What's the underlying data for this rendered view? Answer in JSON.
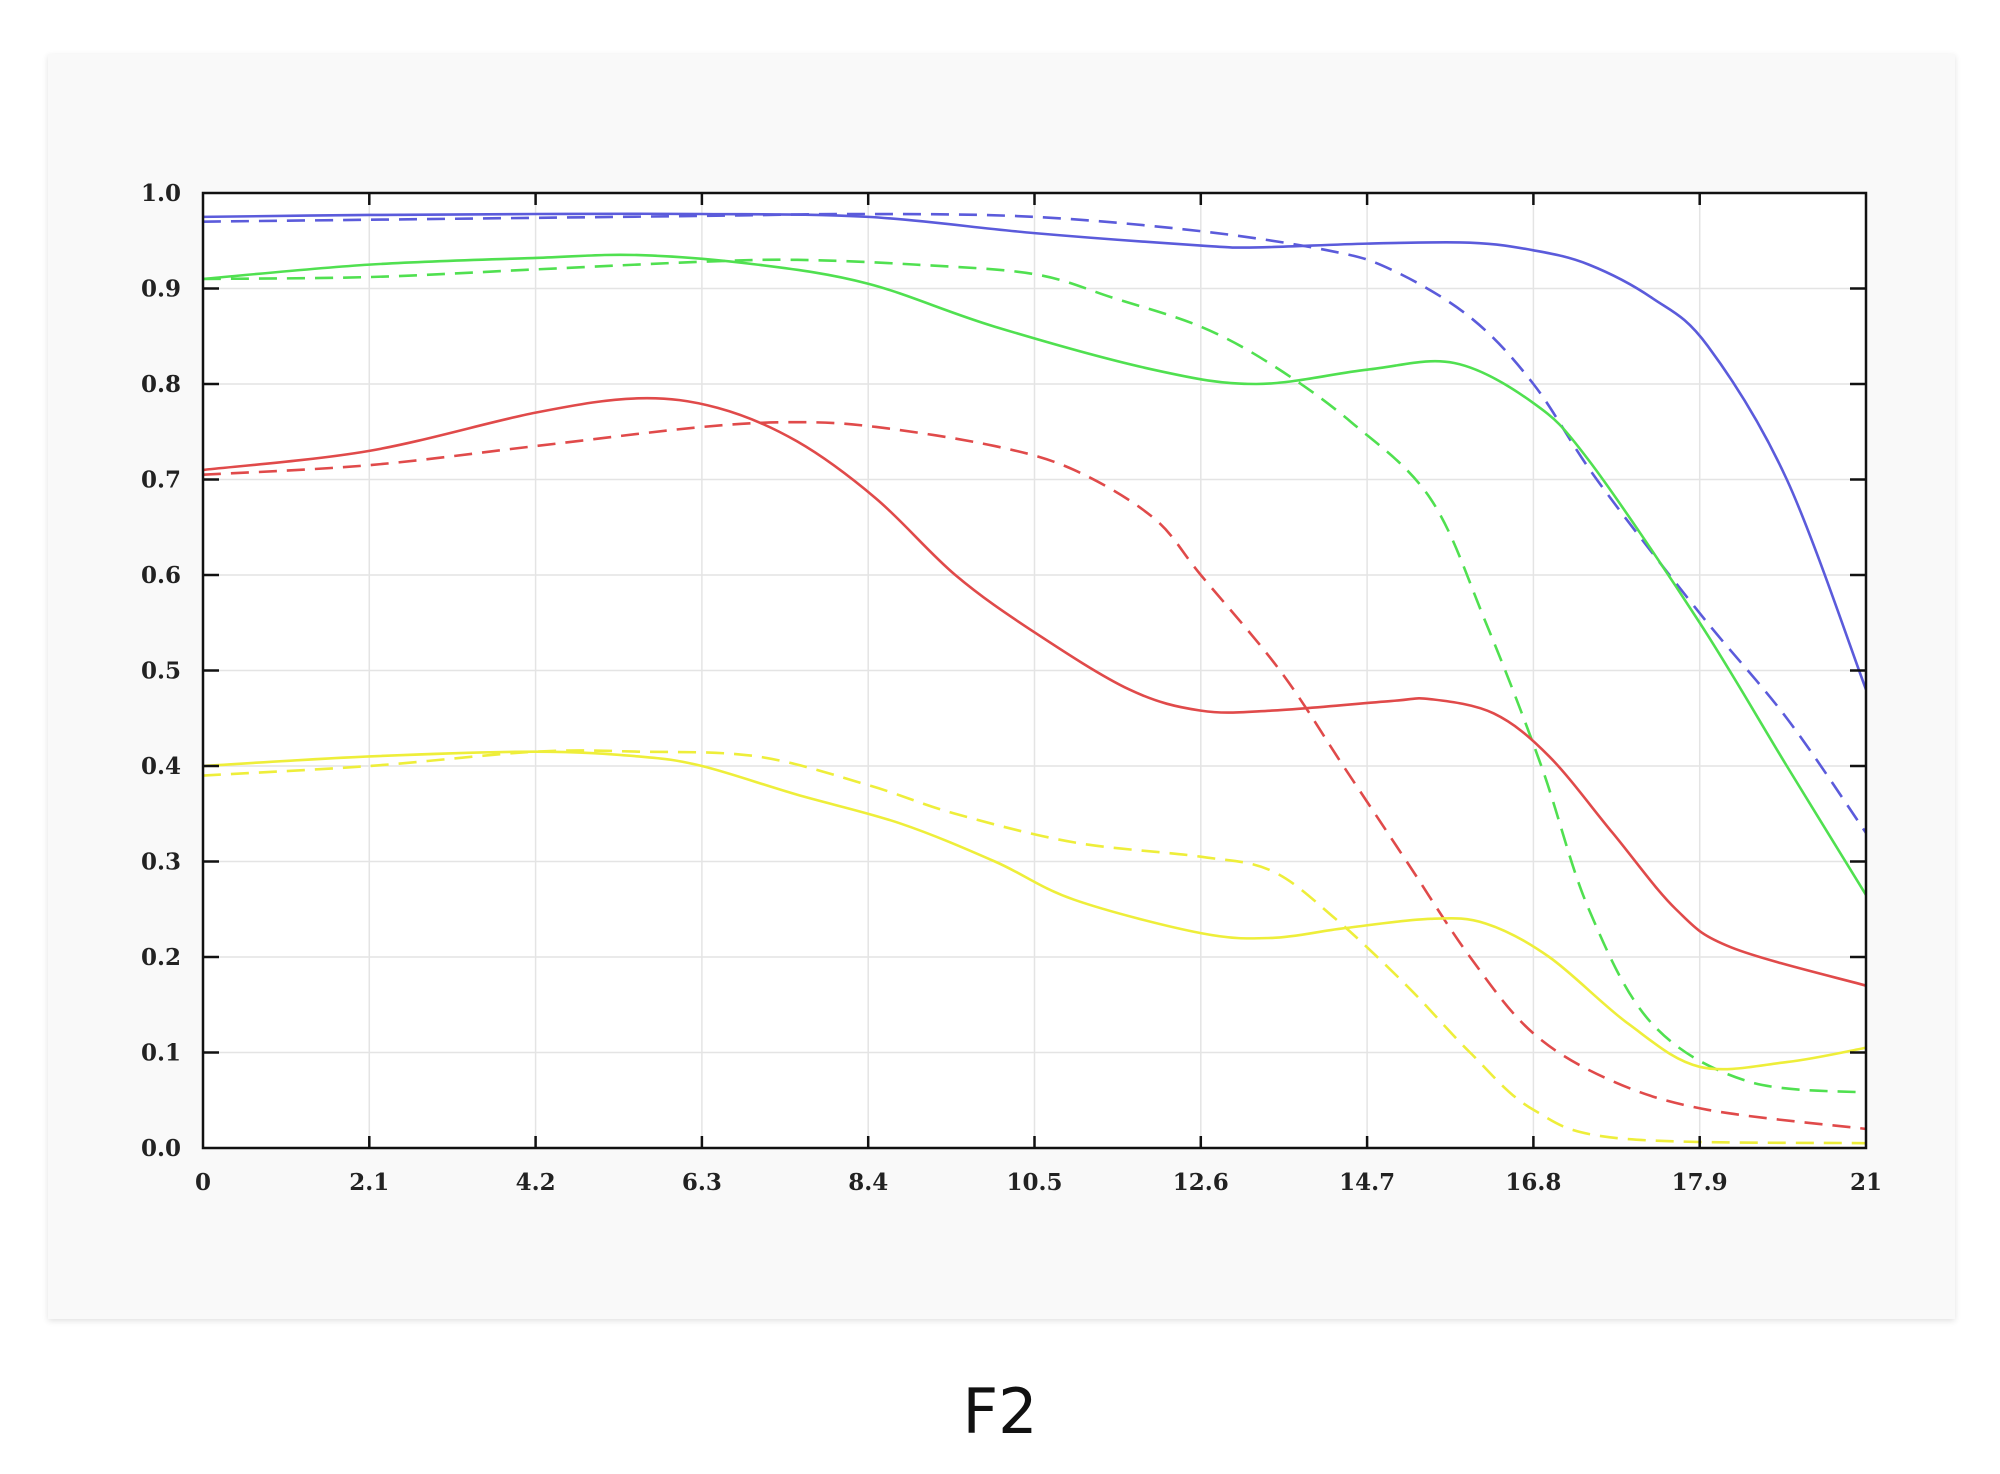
{
  "caption": "F2",
  "chart_data": {
    "type": "line",
    "title": "",
    "xlabel": "",
    "ylabel": "",
    "xlim": [
      0,
      21
    ],
    "ylim": [
      0,
      1.0
    ],
    "grid": true,
    "legend": "none",
    "x_tick_labels": [
      "0",
      "2.1",
      "4.2",
      "6.3",
      "8.4",
      "10.5",
      "12.6",
      "14.7",
      "16.8",
      "17.9",
      "21"
    ],
    "y_tick_labels": [
      "0.0",
      "0.1",
      "0.2",
      "0.3",
      "0.4",
      "0.5",
      "0.6",
      "0.7",
      "0.8",
      "0.9",
      "1.0"
    ],
    "series": [
      {
        "color": "#5b5bdb",
        "style": "solid",
        "x": [
          0,
          2.1,
          4.2,
          6.3,
          8.4,
          10.5,
          12.6,
          13.3,
          14.7,
          16,
          16.8,
          17.5,
          18.3,
          19,
          20,
          21
        ],
        "y": [
          0.975,
          0.977,
          0.978,
          0.978,
          0.975,
          0.958,
          0.945,
          0.943,
          0.947,
          0.948,
          0.94,
          0.925,
          0.89,
          0.84,
          0.7,
          0.48
        ]
      },
      {
        "color": "#5b5bdb",
        "style": "dashed",
        "x": [
          0,
          2.1,
          4.2,
          6.3,
          8.4,
          10.5,
          12.6,
          14.2,
          15,
          16,
          16.8,
          17.6,
          18.9,
          20,
          21
        ],
        "y": [
          0.97,
          0.972,
          0.974,
          0.976,
          0.978,
          0.975,
          0.96,
          0.94,
          0.92,
          0.87,
          0.8,
          0.7,
          0.56,
          0.45,
          0.33
        ]
      },
      {
        "color": "#50e050",
        "style": "solid",
        "x": [
          0,
          2.1,
          4.2,
          5.5,
          7,
          8.4,
          10,
          12,
          13.3,
          14.7,
          15.8,
          16.8,
          17.5,
          18.9,
          20,
          21
        ],
        "y": [
          0.91,
          0.925,
          0.932,
          0.935,
          0.925,
          0.905,
          0.86,
          0.815,
          0.8,
          0.815,
          0.822,
          0.78,
          0.72,
          0.55,
          0.4,
          0.265
        ]
      },
      {
        "color": "#50e050",
        "style": "dashed",
        "x": [
          0,
          2.1,
          4.2,
          6.3,
          7.5,
          9,
          10.5,
          11.5,
          12.6,
          13.5,
          14.5,
          15.5,
          16.2,
          16.9,
          17.5,
          18.3,
          19.5,
          21
        ],
        "y": [
          0.91,
          0.912,
          0.92,
          0.928,
          0.93,
          0.925,
          0.915,
          0.89,
          0.86,
          0.82,
          0.76,
          0.68,
          0.55,
          0.4,
          0.25,
          0.13,
          0.07,
          0.058
        ]
      },
      {
        "color": "#e04a4a",
        "style": "solid",
        "x": [
          0,
          2.1,
          4.2,
          5.5,
          6.5,
          7.5,
          8.5,
          9.5,
          10.5,
          11.7,
          12.6,
          13.5,
          15,
          15.5,
          16.3,
          17,
          17.8,
          18.6,
          19.3,
          21
        ],
        "y": [
          0.71,
          0.73,
          0.77,
          0.785,
          0.775,
          0.74,
          0.68,
          0.6,
          0.54,
          0.48,
          0.458,
          0.458,
          0.468,
          0.47,
          0.455,
          0.41,
          0.33,
          0.25,
          0.21,
          0.17
        ]
      },
      {
        "color": "#e04a4a",
        "style": "dashed",
        "x": [
          0,
          2.1,
          4.2,
          6.3,
          7.5,
          8.5,
          10,
          11,
          12,
          12.6,
          13.6,
          14.4,
          15.2,
          16,
          16.8,
          17.8,
          19,
          21
        ],
        "y": [
          0.705,
          0.715,
          0.735,
          0.755,
          0.76,
          0.755,
          0.735,
          0.71,
          0.66,
          0.6,
          0.5,
          0.4,
          0.3,
          0.2,
          0.12,
          0.07,
          0.04,
          0.02
        ]
      },
      {
        "color": "#eeee3a",
        "style": "solid",
        "x": [
          0,
          2.1,
          4.2,
          5.5,
          6.3,
          7.5,
          8.8,
          10,
          11,
          12.6,
          13.5,
          14.4,
          15.5,
          16.2,
          17,
          18,
          18.9,
          20,
          21
        ],
        "y": [
          0.4,
          0.41,
          0.415,
          0.41,
          0.4,
          0.37,
          0.34,
          0.3,
          0.26,
          0.225,
          0.22,
          0.23,
          0.24,
          0.235,
          0.2,
          0.13,
          0.085,
          0.09,
          0.105
        ]
      },
      {
        "color": "#eeee3a",
        "style": "dashed",
        "x": [
          0,
          2.1,
          4.2,
          5.5,
          7,
          8.4,
          9.5,
          11,
          12.6,
          13.5,
          14.3,
          15.2,
          16,
          16.8,
          17.9,
          21
        ],
        "y": [
          0.39,
          0.4,
          0.415,
          0.415,
          0.41,
          0.38,
          0.35,
          0.32,
          0.305,
          0.29,
          0.24,
          0.17,
          0.1,
          0.04,
          0.01,
          0.005
        ]
      }
    ]
  }
}
